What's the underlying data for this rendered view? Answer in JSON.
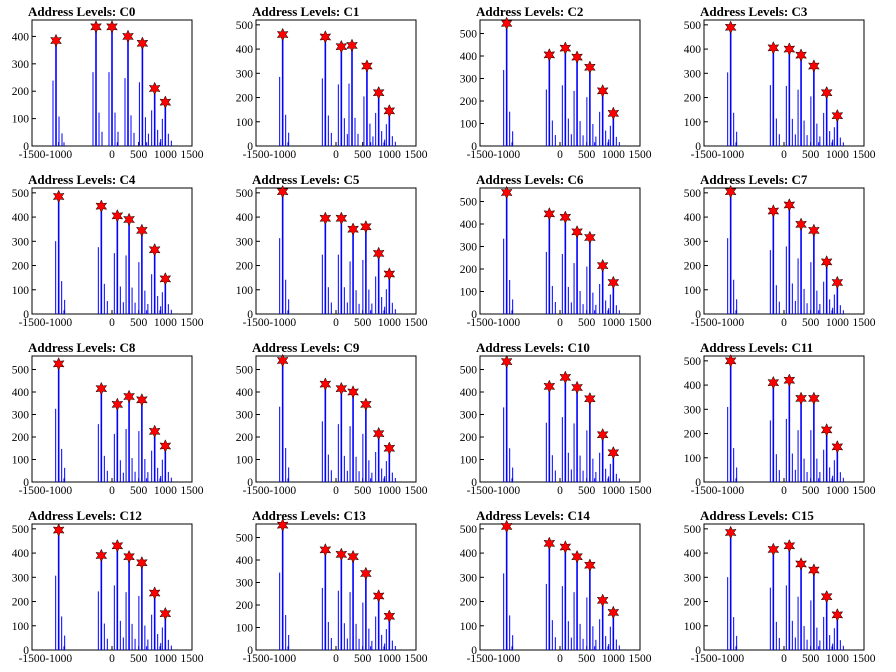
{
  "figure": {
    "layout": "4x4 grid",
    "colors": {
      "histogram": "#0000ff",
      "peak_marker": "#ff0000",
      "axis": "#000000"
    }
  },
  "chart_data": [
    {
      "type": "bar",
      "title": "Address Levels: C0",
      "xlim": [
        -1500,
        1500
      ],
      "ylim": [
        0,
        460
      ],
      "xticks": [
        "-1500",
        "-1000",
        "0",
        "500",
        "1000",
        "1500"
      ],
      "yticks": [
        "0",
        "100",
        "200",
        "300",
        "400"
      ],
      "yticks_v": [
        0,
        100,
        200,
        300,
        400
      ],
      "peaks": {
        "x": [
          -1050,
          -300,
          0,
          300,
          570,
          800,
          1000
        ],
        "y": [
          385,
          435,
          435,
          400,
          375,
          210,
          160
        ]
      }
    },
    {
      "type": "bar",
      "title": "Address Levels: C1",
      "xlim": [
        -1500,
        1500
      ],
      "ylim": [
        0,
        520
      ],
      "xticks": [
        "-1500",
        "-1000",
        "0",
        "500",
        "1000",
        "1500"
      ],
      "yticks": [
        "0",
        "100",
        "200",
        "300",
        "400",
        "500"
      ],
      "yticks_v": [
        0,
        100,
        200,
        300,
        400,
        500
      ],
      "peaks": {
        "x": [
          -1000,
          -200,
          100,
          300,
          580,
          800,
          1000
        ],
        "y": [
          460,
          450,
          410,
          415,
          330,
          220,
          145
        ]
      }
    },
    {
      "type": "bar",
      "title": "Address Levels: C2",
      "xlim": [
        -1500,
        1500
      ],
      "ylim": [
        0,
        560
      ],
      "xticks": [
        "-1500",
        "-1000",
        "0",
        "500",
        "1000",
        "1500"
      ],
      "yticks": [
        "0",
        "100",
        "200",
        "300",
        "400",
        "500"
      ],
      "yticks_v": [
        0,
        100,
        200,
        300,
        400,
        500
      ],
      "peaks": {
        "x": [
          -1000,
          -200,
          100,
          320,
          560,
          800,
          1000
        ],
        "y": [
          545,
          405,
          435,
          395,
          350,
          245,
          145
        ]
      }
    },
    {
      "type": "bar",
      "title": "Address Levels: C3",
      "xlim": [
        -1500,
        1500
      ],
      "ylim": [
        0,
        520
      ],
      "xticks": [
        "-1500",
        "-1000",
        "0",
        "500",
        "1000",
        "1500"
      ],
      "yticks": [
        "0",
        "100",
        "200",
        "300",
        "400",
        "500"
      ],
      "yticks_v": [
        0,
        100,
        200,
        300,
        400,
        500
      ],
      "peaks": {
        "x": [
          -1000,
          -200,
          100,
          320,
          560,
          800,
          1000
        ],
        "y": [
          490,
          405,
          400,
          375,
          330,
          220,
          125
        ]
      }
    },
    {
      "type": "bar",
      "title": "Address Levels: C4",
      "xlim": [
        -1500,
        1500
      ],
      "ylim": [
        0,
        520
      ],
      "xticks": [
        "-1500",
        "-1000",
        "0",
        "500",
        "1000",
        "1500"
      ],
      "yticks": [
        "0",
        "100",
        "200",
        "300",
        "400",
        "500"
      ],
      "yticks_v": [
        0,
        100,
        200,
        300,
        400,
        500
      ],
      "peaks": {
        "x": [
          -1000,
          -200,
          100,
          320,
          560,
          800,
          1000
        ],
        "y": [
          485,
          445,
          405,
          390,
          345,
          265,
          145
        ]
      }
    },
    {
      "type": "bar",
      "title": "Address Levels: C5",
      "xlim": [
        -1500,
        1500
      ],
      "ylim": [
        0,
        520
      ],
      "xticks": [
        "-1500",
        "-1000",
        "0",
        "500",
        "1000",
        "1500"
      ],
      "yticks": [
        "0",
        "100",
        "200",
        "300",
        "400",
        "500"
      ],
      "yticks_v": [
        0,
        100,
        200,
        300,
        400,
        500
      ],
      "peaks": {
        "x": [
          -1000,
          -200,
          100,
          320,
          560,
          800,
          1000
        ],
        "y": [
          505,
          395,
          395,
          350,
          360,
          250,
          165
        ]
      }
    },
    {
      "type": "bar",
      "title": "Address Levels: C6",
      "xlim": [
        -1500,
        1500
      ],
      "ylim": [
        0,
        560
      ],
      "xticks": [
        "-1500",
        "-1000",
        "0",
        "500",
        "1000",
        "1500"
      ],
      "yticks": [
        "0",
        "100",
        "200",
        "300",
        "400",
        "500"
      ],
      "yticks_v": [
        0,
        100,
        200,
        300,
        400,
        500
      ],
      "peaks": {
        "x": [
          -1000,
          -200,
          100,
          320,
          560,
          800,
          1000
        ],
        "y": [
          540,
          445,
          430,
          365,
          340,
          215,
          140
        ]
      }
    },
    {
      "type": "bar",
      "title": "Address Levels: C7",
      "xlim": [
        -1500,
        1500
      ],
      "ylim": [
        0,
        520
      ],
      "xticks": [
        "-1500",
        "-1000",
        "0",
        "500",
        "1000",
        "1500"
      ],
      "yticks": [
        "0",
        "100",
        "200",
        "300",
        "400",
        "500"
      ],
      "yticks_v": [
        0,
        100,
        200,
        300,
        400,
        500
      ],
      "peaks": {
        "x": [
          -1000,
          -200,
          100,
          320,
          560,
          800,
          1000
        ],
        "y": [
          505,
          425,
          450,
          370,
          345,
          215,
          130
        ]
      }
    },
    {
      "type": "bar",
      "title": "Address Levels: C8",
      "xlim": [
        -1500,
        1500
      ],
      "ylim": [
        0,
        560
      ],
      "xticks": [
        "-1500",
        "-1000",
        "0",
        "500",
        "1000",
        "1500"
      ],
      "yticks": [
        "0",
        "100",
        "200",
        "300",
        "400",
        "500"
      ],
      "yticks_v": [
        0,
        100,
        200,
        300,
        400,
        500
      ],
      "peaks": {
        "x": [
          -1000,
          -200,
          100,
          320,
          560,
          800,
          1000
        ],
        "y": [
          525,
          415,
          345,
          380,
          365,
          225,
          160
        ]
      }
    },
    {
      "type": "bar",
      "title": "Address Levels: C9",
      "xlim": [
        -1500,
        1500
      ],
      "ylim": [
        0,
        560
      ],
      "xticks": [
        "-1500",
        "-1000",
        "0",
        "500",
        "1000",
        "1500"
      ],
      "yticks": [
        "0",
        "100",
        "200",
        "300",
        "400",
        "500"
      ],
      "yticks_v": [
        0,
        100,
        200,
        300,
        400,
        500
      ],
      "peaks": {
        "x": [
          -1000,
          -200,
          100,
          320,
          560,
          800,
          1000
        ],
        "y": [
          540,
          435,
          415,
          400,
          345,
          215,
          150
        ]
      }
    },
    {
      "type": "bar",
      "title": "Address Levels: C10",
      "xlim": [
        -1500,
        1500
      ],
      "ylim": [
        0,
        560
      ],
      "xticks": [
        "-1500",
        "-1000",
        "0",
        "500",
        "1000",
        "1500"
      ],
      "yticks": [
        "0",
        "100",
        "200",
        "300",
        "400",
        "500"
      ],
      "yticks_v": [
        0,
        100,
        200,
        300,
        400,
        500
      ],
      "peaks": {
        "x": [
          -1000,
          -200,
          100,
          320,
          560,
          800,
          1000
        ],
        "y": [
          535,
          425,
          465,
          420,
          370,
          210,
          130
        ]
      }
    },
    {
      "type": "bar",
      "title": "Address Levels: C11",
      "xlim": [
        -1500,
        1500
      ],
      "ylim": [
        0,
        520
      ],
      "xticks": [
        "-1500",
        "-1000",
        "0",
        "500",
        "1000",
        "1500"
      ],
      "yticks": [
        "0",
        "100",
        "200",
        "300",
        "400",
        "500"
      ],
      "yticks_v": [
        0,
        100,
        200,
        300,
        400,
        500
      ],
      "peaks": {
        "x": [
          -1000,
          -200,
          100,
          320,
          560,
          800,
          1000
        ],
        "y": [
          500,
          410,
          420,
          345,
          345,
          215,
          145
        ]
      }
    },
    {
      "type": "bar",
      "title": "Address Levels: C12",
      "xlim": [
        -1500,
        1500
      ],
      "ylim": [
        0,
        520
      ],
      "xticks": [
        "-1500",
        "-1000",
        "0",
        "500",
        "1000",
        "1500"
      ],
      "yticks": [
        "0",
        "100",
        "200",
        "300",
        "400",
        "500"
      ],
      "yticks_v": [
        0,
        100,
        200,
        300,
        400,
        500
      ],
      "peaks": {
        "x": [
          -1000,
          -200,
          100,
          320,
          560,
          800,
          1000
        ],
        "y": [
          495,
          390,
          430,
          385,
          360,
          235,
          150
        ]
      }
    },
    {
      "type": "bar",
      "title": "Address Levels: C13",
      "xlim": [
        -1500,
        1500
      ],
      "ylim": [
        0,
        560
      ],
      "xticks": [
        "-1500",
        "-1000",
        "0",
        "500",
        "1000",
        "1500"
      ],
      "yticks": [
        "0",
        "100",
        "200",
        "300",
        "400",
        "500"
      ],
      "yticks_v": [
        0,
        100,
        200,
        300,
        400,
        500
      ],
      "peaks": {
        "x": [
          -1000,
          -200,
          100,
          320,
          560,
          800,
          1000
        ],
        "y": [
          555,
          445,
          425,
          415,
          340,
          240,
          150
        ]
      }
    },
    {
      "type": "bar",
      "title": "Address Levels: C14",
      "xlim": [
        -1500,
        1500
      ],
      "ylim": [
        0,
        520
      ],
      "xticks": [
        "-1500",
        "-1000",
        "0",
        "500",
        "1000",
        "1500"
      ],
      "yticks": [
        "0",
        "100",
        "200",
        "300",
        "400",
        "500"
      ],
      "yticks_v": [
        0,
        100,
        200,
        300,
        400,
        500
      ],
      "peaks": {
        "x": [
          -1000,
          -200,
          100,
          320,
          560,
          800,
          1000
        ],
        "y": [
          510,
          440,
          425,
          385,
          350,
          205,
          155
        ]
      }
    },
    {
      "type": "bar",
      "title": "Address Levels: C15",
      "xlim": [
        -1500,
        1500
      ],
      "ylim": [
        0,
        520
      ],
      "xticks": [
        "-1500",
        "-1000",
        "0",
        "500",
        "1000",
        "1500"
      ],
      "yticks": [
        "0",
        "100",
        "200",
        "300",
        "400",
        "500"
      ],
      "yticks_v": [
        0,
        100,
        200,
        300,
        400,
        500
      ],
      "peaks": {
        "x": [
          -1000,
          -200,
          100,
          320,
          560,
          800,
          1000
        ],
        "y": [
          485,
          415,
          430,
          355,
          330,
          220,
          145
        ]
      }
    }
  ]
}
